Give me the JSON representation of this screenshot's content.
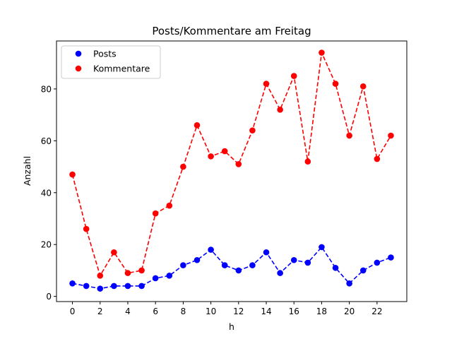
{
  "chart_data": {
    "type": "line",
    "title": "Posts/Kommentare am Freitag",
    "xlabel": "h",
    "ylabel": "Anzahl",
    "x": [
      0,
      1,
      2,
      3,
      4,
      5,
      6,
      7,
      8,
      9,
      10,
      11,
      12,
      13,
      14,
      15,
      16,
      17,
      18,
      19,
      20,
      21,
      22,
      23
    ],
    "xticks": [
      0,
      2,
      4,
      6,
      8,
      10,
      12,
      14,
      16,
      18,
      20,
      22
    ],
    "yticks": [
      0,
      20,
      40,
      60,
      80
    ],
    "xlim": [
      -1.15,
      24.15
    ],
    "ylim": [
      -2,
      98.5
    ],
    "grid": false,
    "legend_position": "top-left",
    "series": [
      {
        "name": "Posts",
        "color": "#0000ff",
        "line_style": "dashed",
        "marker": "circle",
        "values": [
          5,
          4,
          3,
          4,
          4,
          4,
          7,
          8,
          12,
          14,
          18,
          12,
          10,
          12,
          17,
          9,
          14,
          13,
          19,
          11,
          5,
          10,
          13,
          15
        ]
      },
      {
        "name": "Kommentare",
        "color": "#ff0000",
        "line_style": "dashed",
        "marker": "circle",
        "values": [
          47,
          26,
          8,
          17,
          9,
          10,
          32,
          35,
          50,
          66,
          54,
          56,
          51,
          64,
          82,
          72,
          85,
          52,
          94,
          82,
          62,
          81,
          53,
          62
        ]
      }
    ]
  }
}
